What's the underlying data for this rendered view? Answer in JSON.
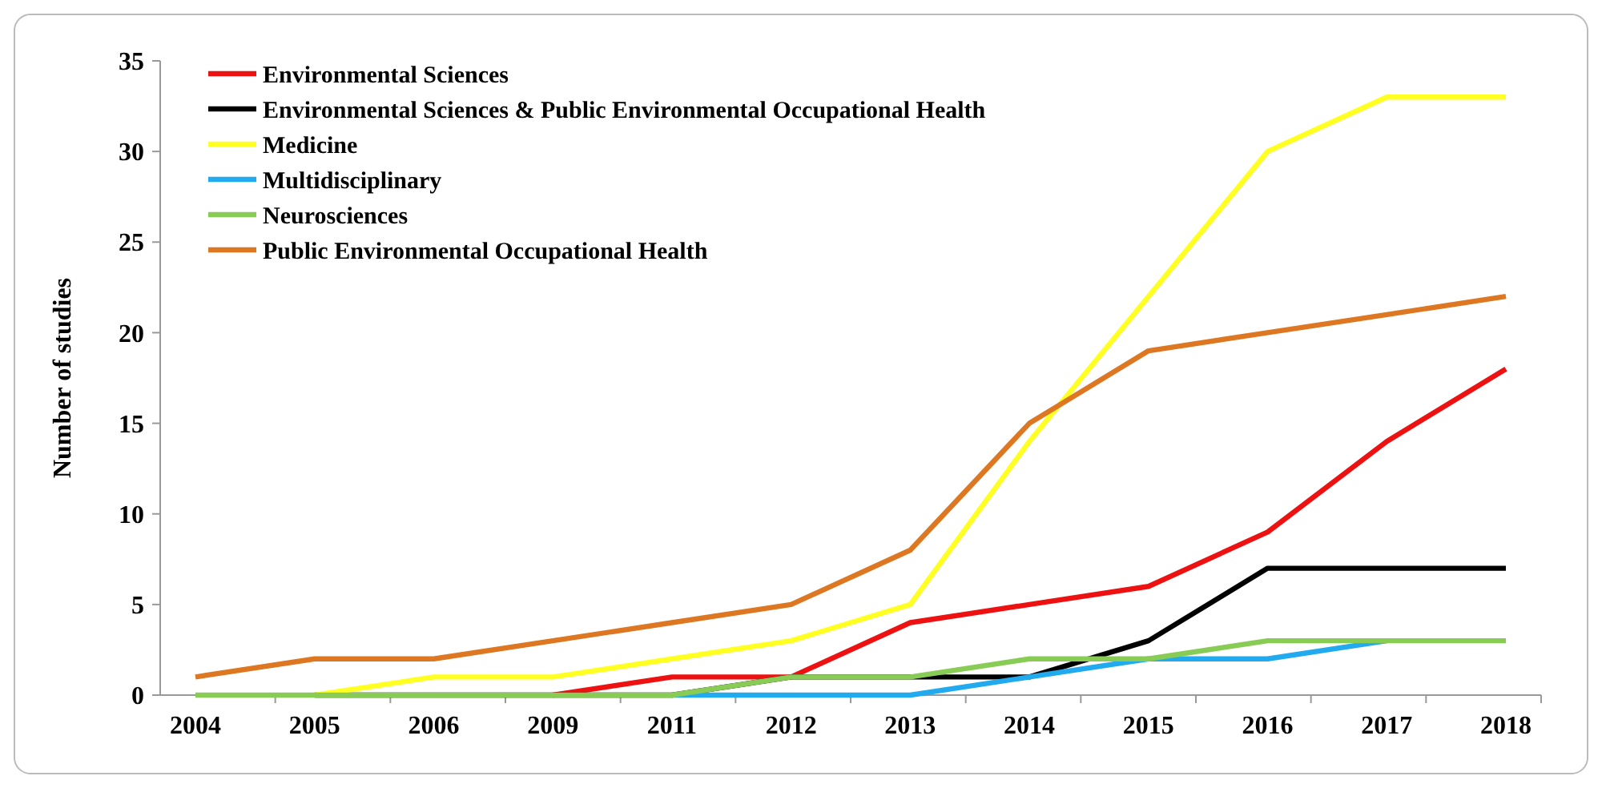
{
  "chart_data": {
    "type": "line",
    "ylabel": "Number  of studies",
    "categories": [
      "2004",
      "2005",
      "2006",
      "2009",
      "2011",
      "2012",
      "2013",
      "2014",
      "2015",
      "2016",
      "2017",
      "2018"
    ],
    "series": [
      {
        "name": "Environmental Sciences",
        "color": "#ee1111",
        "values": [
          null,
          null,
          null,
          0,
          1,
          1,
          4,
          5,
          6,
          9,
          14,
          18
        ]
      },
      {
        "name": "Environmental Sciences & Public Environmental Occupational Health",
        "color": "#000000",
        "values": [
          null,
          0,
          0,
          0,
          0,
          1,
          1,
          1,
          3,
          7,
          7,
          7
        ]
      },
      {
        "name": "Medicine",
        "color": "#ffff22",
        "values": [
          null,
          0,
          1,
          1,
          2,
          3,
          5,
          14,
          22,
          30,
          33,
          33
        ]
      },
      {
        "name": "Multidisciplinary",
        "color": "#22aaee",
        "values": [
          null,
          null,
          null,
          null,
          0,
          0,
          0,
          1,
          2,
          2,
          3,
          null
        ]
      },
      {
        "name": "Neurosciences",
        "color": "#88cc55",
        "values": [
          0,
          0,
          0,
          0,
          0,
          1,
          1,
          2,
          2,
          3,
          3,
          3
        ]
      },
      {
        "name": "Public Environmental Occupational Health",
        "color": "#dd7722",
        "values": [
          1,
          2,
          2,
          3,
          4,
          5,
          8,
          15,
          19,
          20,
          21,
          22
        ]
      }
    ],
    "ylim": [
      0,
      35
    ],
    "yticks": [
      0,
      5,
      10,
      15,
      20,
      25,
      30,
      35
    ],
    "legend": "top left"
  }
}
